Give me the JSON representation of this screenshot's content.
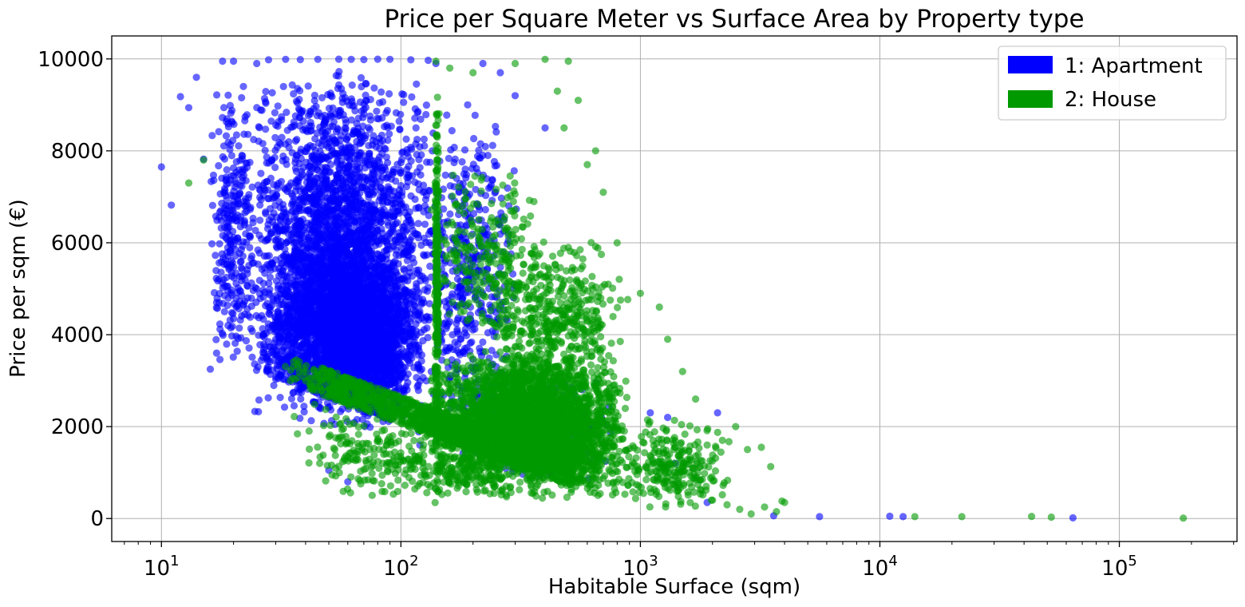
{
  "chart_data": {
    "type": "scatter",
    "title": "Price per Square Meter vs Surface Area by Property type",
    "xlabel": "Habitable Surface (sqm)",
    "ylabel": "Price per sqm (€)",
    "x_scale": "log",
    "xlim": [
      6.2,
      310000
    ],
    "ylim": [
      -500,
      10500
    ],
    "x_ticks": [
      {
        "value": 10,
        "base": "10",
        "exp": "1"
      },
      {
        "value": 100,
        "base": "10",
        "exp": "2"
      },
      {
        "value": 1000,
        "base": "10",
        "exp": "3"
      },
      {
        "value": 10000,
        "base": "10",
        "exp": "4"
      },
      {
        "value": 100000,
        "base": "10",
        "exp": "5"
      }
    ],
    "y_ticks": [
      0,
      2000,
      4000,
      6000,
      8000,
      10000
    ],
    "y_tick_labels": [
      "0",
      "2000",
      "4000",
      "6000",
      "8000",
      "10000"
    ],
    "grid": true,
    "legend_position": "top-right",
    "series": [
      {
        "name": "1: Apartment",
        "color": "#0000ff",
        "points": [
          [
            10,
            7650
          ],
          [
            11,
            6820
          ],
          [
            12,
            9180
          ],
          [
            13,
            8940
          ],
          [
            14,
            9600
          ],
          [
            15,
            7820
          ],
          [
            16,
            3250
          ],
          [
            17,
            4700
          ],
          [
            17,
            3600
          ],
          [
            18,
            9950
          ],
          [
            20,
            9950
          ],
          [
            22,
            9400
          ],
          [
            25,
            9900
          ],
          [
            28,
            9980
          ],
          [
            33,
            9990
          ],
          [
            38,
            9985
          ],
          [
            45,
            9990
          ],
          [
            55,
            9995
          ],
          [
            62,
            9990
          ],
          [
            70,
            9985
          ],
          [
            80,
            9995
          ],
          [
            90,
            9990
          ],
          [
            110,
            9980
          ],
          [
            130,
            9970
          ],
          [
            140,
            9900
          ],
          [
            190,
            9000
          ],
          [
            220,
            9900
          ],
          [
            260,
            9700
          ],
          [
            300,
            9200
          ],
          [
            400,
            8500
          ],
          [
            50,
            1050
          ],
          [
            60,
            800
          ],
          [
            120,
            1600
          ],
          [
            150,
            2100
          ],
          [
            200,
            3200
          ],
          [
            1100,
            2300
          ],
          [
            1300,
            2200
          ],
          [
            2100,
            2300
          ],
          [
            1900,
            350
          ],
          [
            1400,
            1200
          ],
          [
            3600,
            60
          ],
          [
            5600,
            40
          ],
          [
            11000,
            50
          ],
          [
            12500,
            40
          ],
          [
            64000,
            15
          ]
        ],
        "clouds": [
          {
            "xlog": [
              1.35,
              2.15
            ],
            "y": [
              2200,
              9800
            ],
            "n": 2600
          },
          {
            "xlog": [
              1.4,
              2.1
            ],
            "y": [
              2000,
              6000
            ],
            "n": 2400
          },
          {
            "xlog": [
              1.2,
              1.4
            ],
            "y": [
              3000,
              9500
            ],
            "n": 300
          },
          {
            "xlog": [
              1.65,
              2.05
            ],
            "y": [
              1800,
              5500
            ],
            "n": 800
          },
          {
            "xlog": [
              2.05,
              2.5
            ],
            "y": [
              1500,
              9000
            ],
            "n": 500
          },
          {
            "xlog": [
              2.15,
              2.9
            ],
            "y": [
              600,
              3200
            ],
            "n": 350
          }
        ]
      },
      {
        "name": "2: House",
        "color": "#009900",
        "points": [
          [
            13,
            7300
          ],
          [
            15,
            7800
          ],
          [
            140,
            9950
          ],
          [
            160,
            9800
          ],
          [
            200,
            9700
          ],
          [
            300,
            9900
          ],
          [
            400,
            9990
          ],
          [
            500,
            9950
          ],
          [
            450,
            9300
          ],
          [
            480,
            8500
          ],
          [
            550,
            9100
          ],
          [
            600,
            7700
          ],
          [
            650,
            8000
          ],
          [
            700,
            7100
          ],
          [
            800,
            6000
          ],
          [
            1000,
            4900
          ],
          [
            1200,
            4600
          ],
          [
            1300,
            3900
          ],
          [
            1500,
            3200
          ],
          [
            1700,
            2600
          ],
          [
            1900,
            1600
          ],
          [
            2200,
            1700
          ],
          [
            2500,
            2000
          ],
          [
            2800,
            1500
          ],
          [
            3200,
            1550
          ],
          [
            3500,
            1130
          ],
          [
            2000,
            400
          ],
          [
            2300,
            300
          ],
          [
            2600,
            200
          ],
          [
            2900,
            100
          ],
          [
            3300,
            250
          ],
          [
            3700,
            150
          ],
          [
            3900,
            380
          ],
          [
            4000,
            350
          ],
          [
            14000,
            40
          ],
          [
            22000,
            40
          ],
          [
            43000,
            45
          ],
          [
            52000,
            30
          ],
          [
            185000,
            10
          ]
        ],
        "clouds": [
          {
            "xlog": [
              2.1,
              2.95
            ],
            "y": [
              400,
              3600
            ],
            "n": 3400
          },
          {
            "xlog": [
              1.6,
              2.9
            ],
            "y": [
              400,
              2000
            ],
            "n": 1600
          },
          {
            "xlog": [
              2.3,
              2.95
            ],
            "y": [
              2500,
              6200
            ],
            "n": 500
          },
          {
            "xlog": [
              2.1,
              2.6
            ],
            "y": [
              4000,
              7800
            ],
            "n": 220
          },
          {
            "xlog": [
              2.9,
              3.4
            ],
            "y": [
              100,
              2200
            ],
            "n": 260
          },
          {
            "xlog": [
              1.5,
              2.0
            ],
            "y": [
              700,
              2800
            ],
            "n": 250
          },
          {
            "xlog": [
              2.14,
              2.16
            ],
            "y": [
              300,
              9300
            ],
            "n": 280
          }
        ]
      }
    ]
  }
}
